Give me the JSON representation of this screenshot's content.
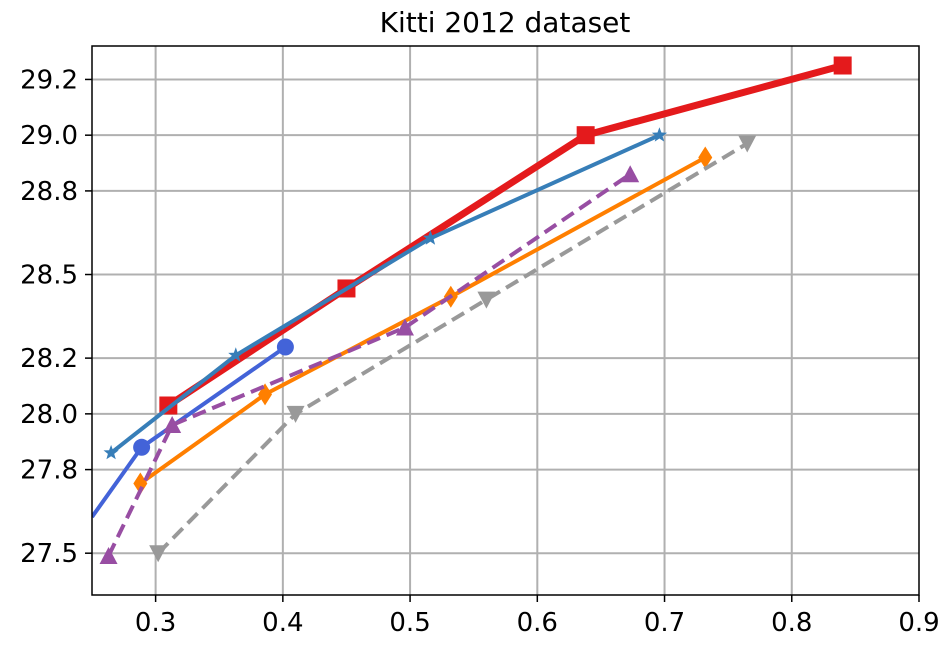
{
  "chart_data": {
    "type": "line",
    "title": "Kitti 2012 dataset",
    "xlabel": "",
    "ylabel": "",
    "xlim": [
      0.25,
      0.9
    ],
    "ylim": [
      27.35,
      29.32
    ],
    "xticks": [
      0.3,
      0.4,
      0.5,
      0.6,
      0.7,
      0.8,
      0.9
    ],
    "xtick_labels": [
      "0.3",
      "0.4",
      "0.5",
      "0.6",
      "0.7",
      "0.8",
      "0.9"
    ],
    "yticks": [
      27.5,
      27.8,
      28.0,
      28.2,
      28.5,
      28.8,
      29.0,
      29.2
    ],
    "ytick_labels": [
      "27.5",
      "27.8",
      "28.0",
      "28.2",
      "28.5",
      "28.8",
      "29.0",
      "29.2"
    ],
    "grid": true,
    "series": [
      {
        "color": "#e41a1c",
        "marker": "square",
        "dash": false,
        "width": 7,
        "x": [
          0.31,
          0.45,
          0.638,
          0.84
        ],
        "y": [
          28.03,
          28.45,
          29.0,
          29.25
        ]
      },
      {
        "color": "#377eb8",
        "marker": "star",
        "dash": false,
        "width": 4,
        "x": [
          0.265,
          0.363,
          0.516,
          0.696
        ],
        "y": [
          27.86,
          28.21,
          28.63,
          29.0
        ]
      },
      {
        "color": "#4363d8",
        "marker": "circle",
        "dash": false,
        "width": 4,
        "x": [
          0.25,
          0.289,
          0.402
        ],
        "y": [
          27.63,
          27.88,
          28.24
        ]
      },
      {
        "color": "#ff7f00",
        "marker": "diamond",
        "dash": false,
        "width": 4,
        "x": [
          0.288,
          0.386,
          0.532,
          0.732
        ],
        "y": [
          27.75,
          28.07,
          28.42,
          28.92
        ]
      },
      {
        "color": "#984ea3",
        "marker": "triangle-up",
        "dash": true,
        "width": 4,
        "x": [
          0.263,
          0.313,
          0.496,
          0.673
        ],
        "y": [
          27.49,
          27.96,
          28.31,
          28.86
        ]
      },
      {
        "color": "#999999",
        "marker": "triangle-down",
        "dash": true,
        "width": 4,
        "x": [
          0.302,
          0.41,
          0.56,
          0.765
        ],
        "y": [
          27.5,
          28.0,
          28.41,
          28.97
        ]
      }
    ]
  }
}
